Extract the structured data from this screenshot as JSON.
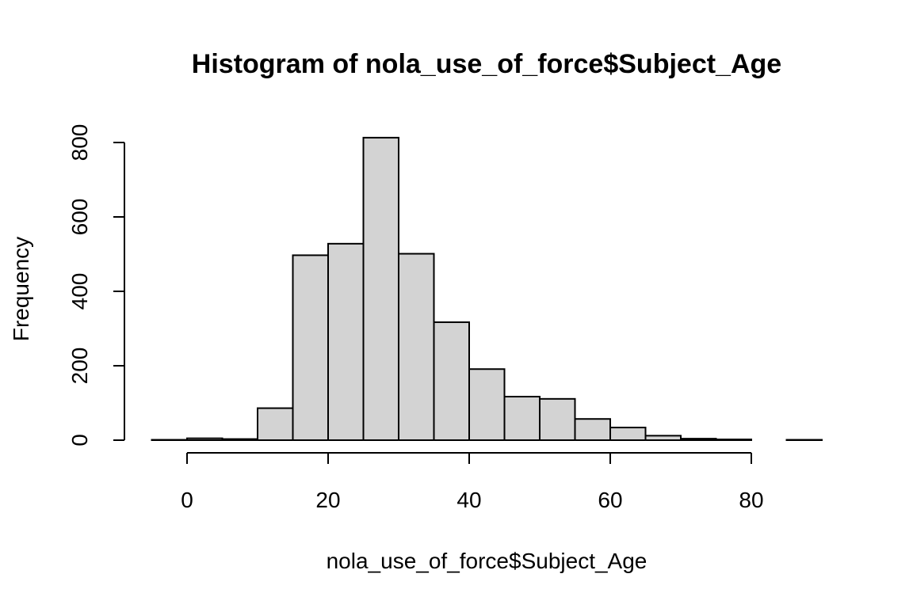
{
  "chart_data": {
    "type": "bar",
    "title": "Histogram of nola_use_of_force$Subject_Age",
    "xlabel": "nola_use_of_force$Subject_Age",
    "ylabel": "Frequency",
    "bin_edges": [
      -5,
      0,
      5,
      10,
      15,
      20,
      25,
      30,
      35,
      40,
      45,
      50,
      55,
      60,
      65,
      70,
      75,
      80,
      85,
      90
    ],
    "values": [
      1,
      5,
      3,
      86,
      497,
      528,
      813,
      501,
      317,
      191,
      117,
      111,
      57,
      34,
      12,
      4,
      2,
      0,
      1
    ],
    "xlim": [
      -5,
      90
    ],
    "ylim": [
      0,
      800
    ],
    "x_ticks": [
      0,
      20,
      40,
      60,
      80
    ],
    "y_ticks": [
      0,
      200,
      400,
      600,
      800
    ],
    "bar_color": "#d3d3d3",
    "grid": false
  }
}
